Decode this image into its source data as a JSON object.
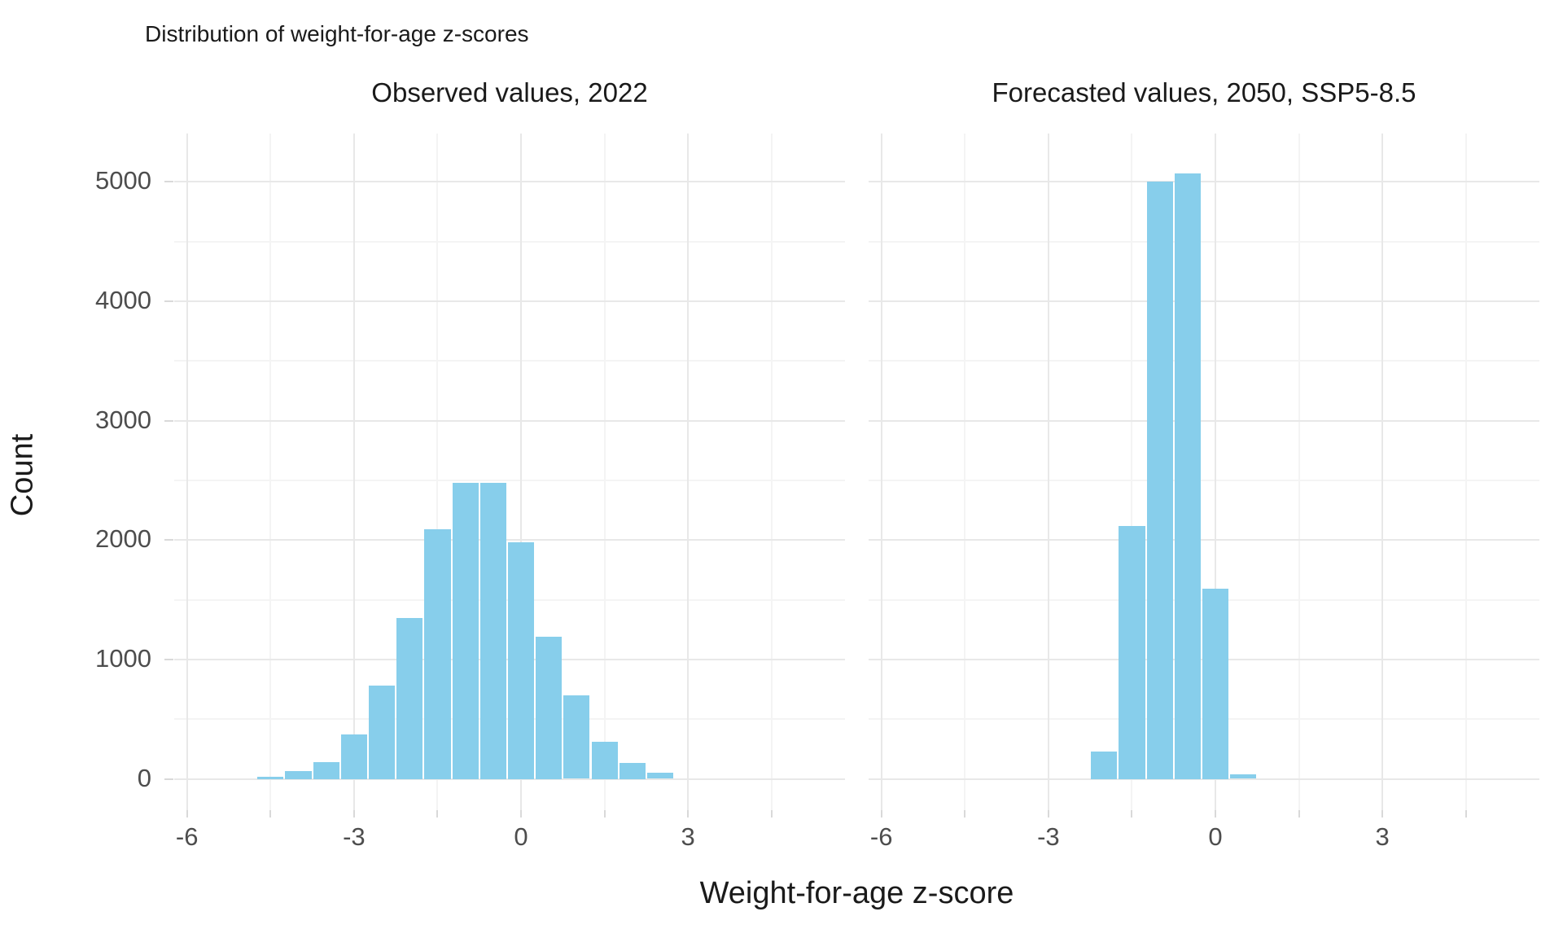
{
  "title": "Distribution of weight-for-age z-scores",
  "axes": {
    "x_title": "Weight-for-age z-score",
    "y_title": "Count",
    "x_tick_labels": [
      "-6",
      "-3",
      "0",
      "3"
    ],
    "y_tick_labels": [
      "0",
      "1000",
      "2000",
      "3000",
      "4000",
      "5000"
    ]
  },
  "panels": [
    {
      "strip": "Observed values, 2022"
    },
    {
      "strip": "Forecasted values, 2050, SSP5-8.5"
    }
  ],
  "chart_data": {
    "type": "bar",
    "subtype": "histogram",
    "title": "Distribution of weight-for-age z-scores",
    "xlabel": "Weight-for-age z-score",
    "ylabel": "Count",
    "bin_width": 0.5,
    "bar_color": "#87CEEB",
    "grid": "on",
    "legend": "none",
    "x_major_ticks": [
      -6,
      -3,
      0,
      3
    ],
    "x_minor_ticks": [
      -4.5,
      -1.5,
      1.5,
      4.5
    ],
    "y_major_ticks": [
      0,
      1000,
      2000,
      3000,
      4000,
      5000
    ],
    "y_minor_ticks": [
      500,
      1500,
      2500,
      3500,
      4500
    ],
    "x_scale_range": [
      -6.23,
      5.82
    ],
    "y_scale_range": [
      -262,
      5405
    ],
    "series": [
      {
        "name": "Observed values, 2022",
        "bins": [
          {
            "center": -4.5,
            "count": 15
          },
          {
            "center": -4.0,
            "count": 65
          },
          {
            "center": -3.5,
            "count": 140
          },
          {
            "center": -3.0,
            "count": 370
          },
          {
            "center": -2.5,
            "count": 780
          },
          {
            "center": -2.0,
            "count": 1350
          },
          {
            "center": -1.5,
            "count": 2090
          },
          {
            "center": -1.0,
            "count": 2480
          },
          {
            "center": -0.5,
            "count": 2480
          },
          {
            "center": 0.0,
            "count": 1985
          },
          {
            "center": 0.5,
            "count": 1190
          },
          {
            "center": 1.0,
            "count": 700
          },
          {
            "center": 1.5,
            "count": 310
          },
          {
            "center": 2.0,
            "count": 135
          },
          {
            "center": 2.5,
            "count": 50
          }
        ]
      },
      {
        "name": "Forecasted values, 2050, SSP5-8.5",
        "bins": [
          {
            "center": -2.0,
            "count": 230
          },
          {
            "center": -1.5,
            "count": 2120
          },
          {
            "center": -1.0,
            "count": 5000
          },
          {
            "center": -0.5,
            "count": 5070
          },
          {
            "center": 0.0,
            "count": 1590
          },
          {
            "center": 0.5,
            "count": 35
          }
        ]
      }
    ]
  }
}
